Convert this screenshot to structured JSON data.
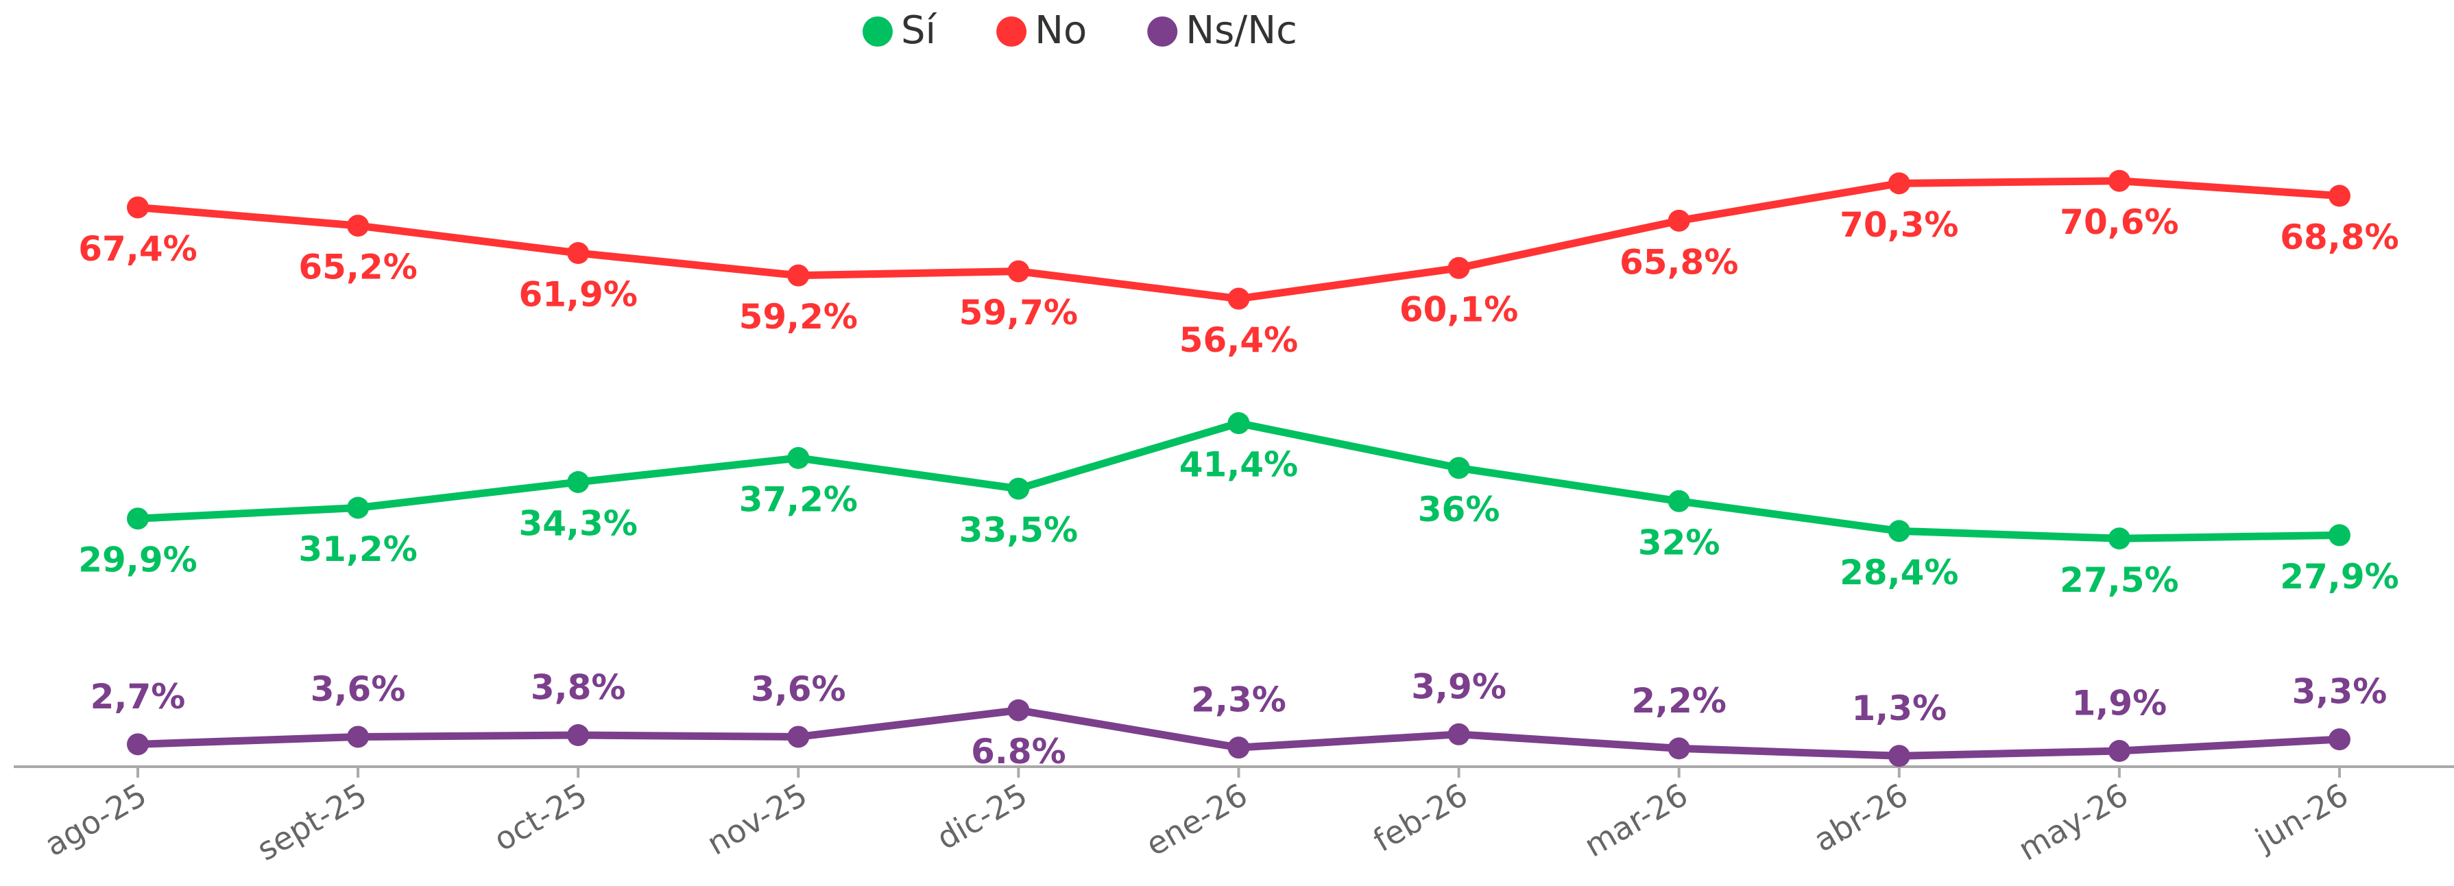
{
  "chart_data": {
    "type": "line",
    "categories": [
      "ago-25",
      "sept-25",
      "oct-25",
      "nov-25",
      "dic-25",
      "ene-26",
      "feb-26",
      "mar-26",
      "abr-26",
      "may-26",
      "jun-26"
    ],
    "series": [
      {
        "name": "Sí",
        "color": "#00c060",
        "values": [
          29.9,
          31.2,
          34.3,
          37.2,
          33.5,
          41.4,
          36,
          32,
          28.4,
          27.5,
          27.9
        ],
        "value_labels": [
          "29,9%",
          "31,2%",
          "34,3%",
          "37,2%",
          "33,5%",
          "41,4%",
          "36%",
          "32%",
          "28,4%",
          "27,5%",
          "27,9%"
        ]
      },
      {
        "name": "No",
        "color": "#ff3333",
        "values": [
          67.4,
          65.2,
          61.9,
          59.2,
          59.7,
          56.4,
          60.1,
          65.8,
          70.3,
          70.6,
          68.8
        ],
        "value_labels": [
          "67,4%",
          "65,2%",
          "61,9%",
          "59,2%",
          "59,7%",
          "56,4%",
          "60,1%",
          "65,8%",
          "70,3%",
          "70,6%",
          "68,8%"
        ]
      },
      {
        "name": "Ns/Nc",
        "color": "#7b3f8c",
        "values": [
          2.7,
          3.6,
          3.8,
          3.6,
          6.8,
          2.3,
          3.9,
          2.2,
          1.3,
          1.9,
          3.3
        ],
        "value_labels": [
          "2,7%",
          "3,6%",
          "3,8%",
          "3,6%",
          "6.8%",
          "2,3%",
          "3,9%",
          "2,2%",
          "1,3%",
          "1,9%",
          "3,3%"
        ]
      }
    ],
    "ylim": [
      0,
      80
    ]
  }
}
